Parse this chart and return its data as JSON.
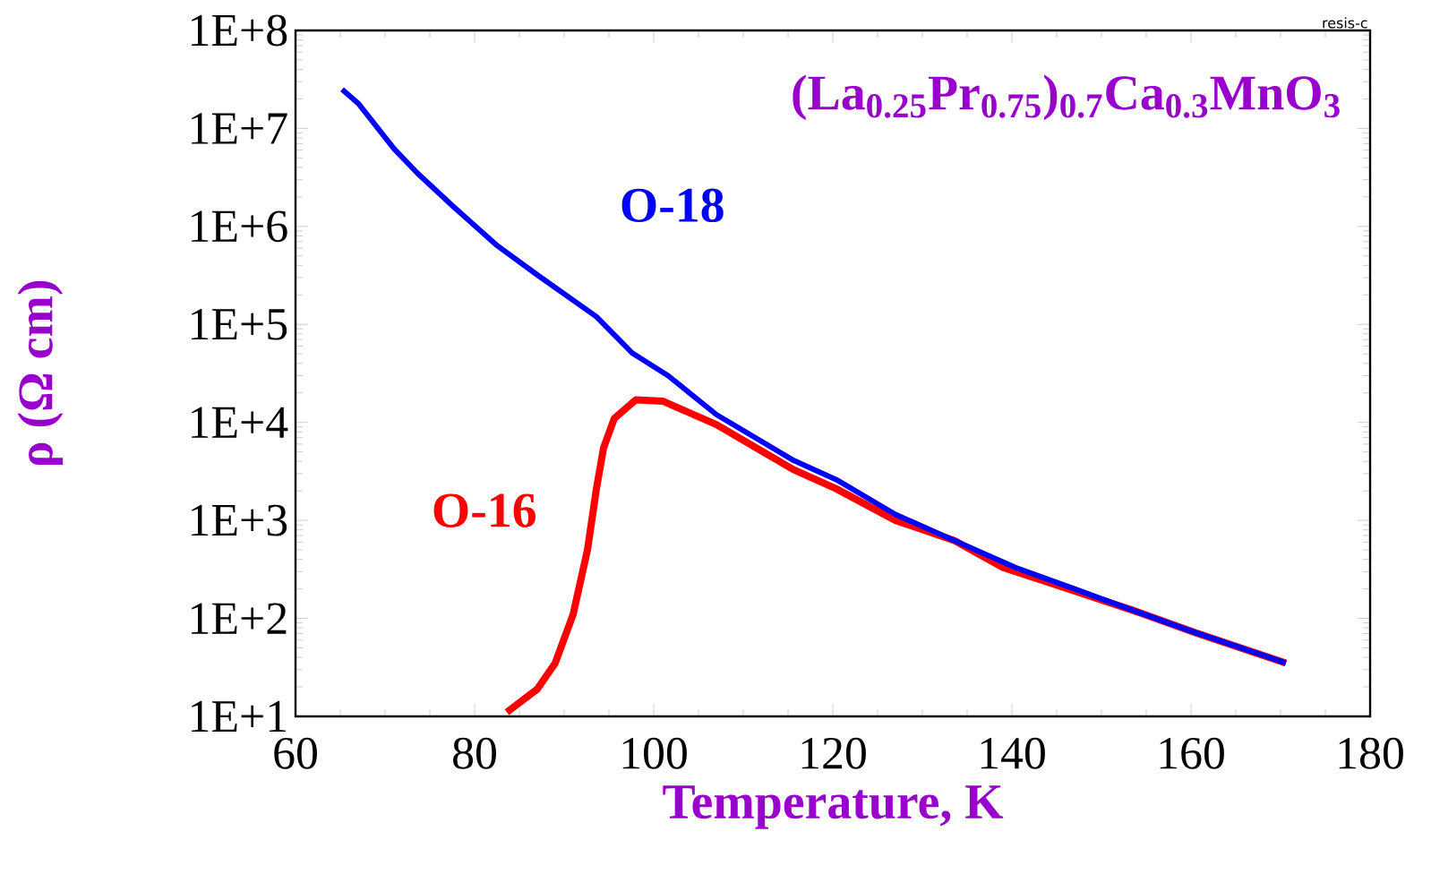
{
  "chart_data": {
    "type": "line",
    "title": "(La$_{0.25}$Pr$_{0.75}$)$_{0.7}$Ca$_{0.3}$MnO$_{3}$",
    "xlabel": "Temperature, K",
    "ylabel": "ρ (Ω cm)",
    "annotations": [
      "resis-c"
    ],
    "log": "y",
    "grid": false,
    "legend": false,
    "marker": "none",
    "line_style": "solid",
    "xlim": [
      60,
      180
    ],
    "xticks": [
      60,
      80,
      100,
      120,
      140,
      160,
      180
    ],
    "ylim": [
      10,
      100000000
    ],
    "yticks": [
      {
        "value": 10,
        "label": "1E+1"
      },
      {
        "value": 100,
        "label": "1E+2"
      },
      {
        "value": 1000,
        "label": "1E+3"
      },
      {
        "value": 10000,
        "label": "1E+4"
      },
      {
        "value": 100000,
        "label": "1E+5"
      },
      {
        "value": 1000000,
        "label": "1E+6"
      },
      {
        "value": 10000000,
        "label": "1E+7"
      },
      {
        "value": 100000000,
        "label": "1E+8"
      }
    ],
    "series": [
      {
        "name": "O-18",
        "color": "#0000ff",
        "x": [
          65.2,
          67,
          71,
          73.6,
          77.6,
          82.4,
          87,
          93.6,
          97.6,
          101.6,
          107,
          115.6,
          120.4,
          127,
          133.6,
          140.4,
          147,
          153.6,
          160.4,
          170.6
        ],
        "values": [
          25000000,
          18000000,
          6200000,
          3500000,
          1600000,
          650000,
          320000,
          120000,
          51000,
          30000,
          12000,
          4100,
          2600,
          1150,
          620,
          330,
          200,
          120,
          72,
          35
        ]
      },
      {
        "name": "O-16",
        "color": "#ff0000",
        "x": [
          83.6,
          87,
          89,
          91,
          92.6,
          93.6,
          94.4,
          95.6,
          98,
          101,
          107,
          115.6,
          120.4,
          127,
          133.6,
          139,
          147,
          153.6,
          160.4,
          170.6
        ],
        "values": [
          11,
          19,
          35,
          110,
          500,
          2100,
          5500,
          11000,
          17000,
          16500,
          9500,
          3300,
          2100,
          1000,
          620,
          330,
          190,
          120,
          72,
          35
        ]
      }
    ]
  }
}
